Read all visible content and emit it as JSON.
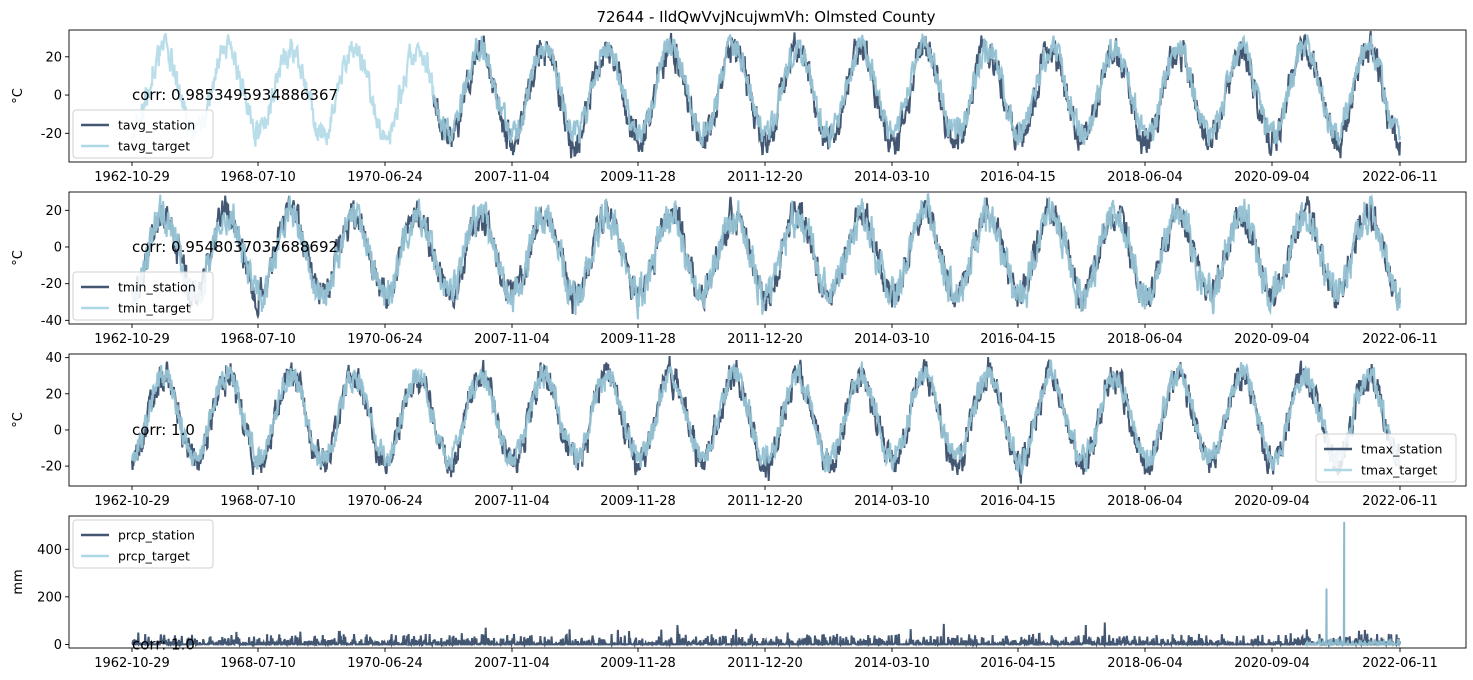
{
  "title": "72644 - IldQwVvjNcujwmVh: Olmsted County",
  "colors": {
    "station": "#435773",
    "target": "#ADD8E6",
    "overlap": "#8DB9CC",
    "frame": "#000000",
    "legend_border": "#d0d0d0"
  },
  "chart_data": [
    {
      "type": "line",
      "ylabel": "°C",
      "ylim": [
        -35,
        34
      ],
      "yticks": [
        -20,
        0,
        20
      ],
      "x_tick_labels": [
        "1962-10-29",
        "1968-07-10",
        "1970-06-24",
        "2007-11-04",
        "2009-11-28",
        "2011-12-20",
        "2014-03-10",
        "2016-04-15",
        "2018-06-04",
        "2020-09-04",
        "2022-06-11"
      ],
      "legend_position": "lower-left",
      "corr_text": "corr: 0.9853495934886367",
      "station_start_cycle": 4.75,
      "series": [
        {
          "name": "tavg_station",
          "role": "station",
          "mean": 0,
          "amplitude": 24,
          "noise": 6
        },
        {
          "name": "tavg_target",
          "role": "target",
          "mean": 2,
          "amplitude": 22,
          "noise": 5
        }
      ]
    },
    {
      "type": "line",
      "ylabel": "°C",
      "ylim": [
        -42,
        30
      ],
      "yticks": [
        -40,
        -20,
        0,
        20
      ],
      "x_tick_labels": [
        "1962-10-29",
        "1968-07-10",
        "1970-06-24",
        "2007-11-04",
        "2009-11-28",
        "2011-12-20",
        "2014-03-10",
        "2016-04-15",
        "2018-06-04",
        "2020-09-04",
        "2022-06-11"
      ],
      "legend_position": "lower-left",
      "corr_text": "corr: 0.9548037037688692",
      "station_start_cycle": 0,
      "series": [
        {
          "name": "tmin_station",
          "role": "station",
          "mean": -4,
          "amplitude": 22,
          "noise": 6
        },
        {
          "name": "tmin_target",
          "role": "target",
          "mean": -4,
          "amplitude": 22,
          "noise": 7
        }
      ]
    },
    {
      "type": "line",
      "ylabel": "°C",
      "ylim": [
        -31,
        42
      ],
      "yticks": [
        -20,
        0,
        20,
        40
      ],
      "x_tick_labels": [
        "1962-10-29",
        "1968-07-10",
        "1970-06-24",
        "2007-11-04",
        "2009-11-28",
        "2011-12-20",
        "2014-03-10",
        "2016-04-15",
        "2018-06-04",
        "2020-09-04",
        "2022-06-11"
      ],
      "legend_position": "lower-right",
      "corr_text": "corr: 1.0",
      "station_start_cycle": 0,
      "series": [
        {
          "name": "tmax_station",
          "role": "station",
          "mean": 6,
          "amplitude": 24,
          "noise": 6
        },
        {
          "name": "tmax_target",
          "role": "target",
          "mean": 7,
          "amplitude": 23,
          "noise": 5
        }
      ]
    },
    {
      "type": "line",
      "ylabel": "mm",
      "ylim": [
        -15,
        540
      ],
      "yticks": [
        0,
        200,
        400
      ],
      "x_tick_labels": [
        "1962-10-29",
        "1968-07-10",
        "1970-06-24",
        "2007-11-04",
        "2009-11-28",
        "2011-12-20",
        "2014-03-10",
        "2016-04-15",
        "2018-06-04",
        "2020-09-04",
        "2022-06-11"
      ],
      "legend_position": "upper-left",
      "corr_text": "corr: 1.0",
      "target_start_cycle": 18.5,
      "series": [
        {
          "name": "prcp_station",
          "role": "station"
        },
        {
          "name": "prcp_target",
          "role": "target",
          "spikes": [
            235,
            515
          ]
        }
      ]
    }
  ]
}
